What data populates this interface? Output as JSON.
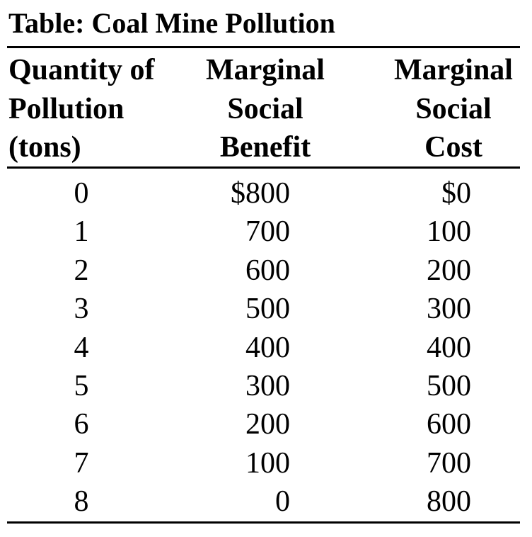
{
  "header": {
    "title": "Table: Coal Mine Pollution"
  },
  "table": {
    "columns": [
      [
        "Quantity of",
        "Pollution",
        "(tons)"
      ],
      [
        "Marginal",
        "Social",
        "Benefit"
      ],
      [
        "Marginal",
        "Social",
        "Cost"
      ]
    ],
    "rows": [
      [
        "0",
        "$800",
        "$0"
      ],
      [
        "1",
        "700",
        "100"
      ],
      [
        "2",
        "600",
        "200"
      ],
      [
        "3",
        "500",
        "300"
      ],
      [
        "4",
        "400",
        "400"
      ],
      [
        "5",
        "300",
        "500"
      ],
      [
        "6",
        "200",
        "600"
      ],
      [
        "7",
        "100",
        "700"
      ],
      [
        "8",
        "0",
        "800"
      ]
    ]
  }
}
